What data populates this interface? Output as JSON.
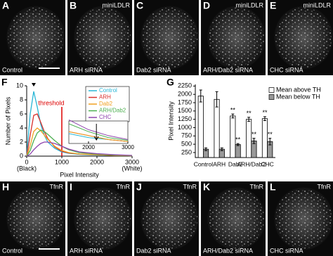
{
  "panels_top": [
    {
      "letter": "A",
      "label": "Control"
    },
    {
      "letter": "B",
      "marker": "miniLDLR",
      "label": "ARH siRNA"
    },
    {
      "letter": "C",
      "label": "Dab2 siRNA"
    },
    {
      "letter": "D",
      "marker": "miniLDLR",
      "label": "ARH/Dab2 siRNA"
    },
    {
      "letter": "E",
      "marker": "miniLDLR",
      "label": "CHC siRNA"
    }
  ],
  "panels_bottom": [
    {
      "letter": "H",
      "marker": "TfnR",
      "label": "Control"
    },
    {
      "letter": "I",
      "marker": "TfnR",
      "label": "ARH siRNA"
    },
    {
      "letter": "J",
      "marker": "TfnR",
      "label": "Dab2 siRNA"
    },
    {
      "letter": "K",
      "marker": "TfnR",
      "label": "ARH/Dab2 siRNA"
    },
    {
      "letter": "L",
      "marker": "TfnR",
      "label": "CHC siRNA"
    }
  ],
  "chart_data": [
    {
      "type": "line",
      "letter": "F",
      "y_label": "Number of Pixels",
      "x_label": "Pixel Intensity",
      "x_end_labels": [
        "(Black)",
        "(White)"
      ],
      "threshold_label": "threshold",
      "threshold_x": 1000,
      "x": [
        0,
        100,
        200,
        300,
        400,
        500,
        600,
        800,
        1000,
        1200,
        1500,
        2000,
        2500,
        3000
      ],
      "series": [
        {
          "name": "Control",
          "color": "#29b6d6",
          "values": [
            0,
            6,
            9.2,
            7,
            4.5,
            3,
            2,
            1.1,
            0.6,
            0.4,
            0.25,
            0.15,
            0.1,
            0.05
          ]
        },
        {
          "name": "ARH",
          "color": "#d9302c",
          "values": [
            0,
            3,
            5.8,
            6,
            4.8,
            3.5,
            2.5,
            1.3,
            0.7,
            0.45,
            0.3,
            0.2,
            0.1,
            0.05
          ]
        },
        {
          "name": "Dab2",
          "color": "#f0a020",
          "values": [
            0,
            1.5,
            3.5,
            4,
            3.6,
            3,
            2.4,
            1.4,
            0.8,
            0.5,
            0.3,
            0.2,
            0.1,
            0.05
          ]
        },
        {
          "name": "ARH/Dab2",
          "color": "#4caf50",
          "values": [
            0,
            0.8,
            2.2,
            3.3,
            3.7,
            3.5,
            3.1,
            2.2,
            1.4,
            0.9,
            0.5,
            0.3,
            0.15,
            0.08
          ]
        },
        {
          "name": "CHC",
          "color": "#8e44ad",
          "values": [
            0,
            0.3,
            0.9,
            1.4,
            1.8,
            2,
            2,
            1.8,
            1.4,
            1,
            0.6,
            0.35,
            0.2,
            0.1
          ]
        }
      ],
      "xlim": [
        0,
        3000
      ],
      "xticks": [
        0,
        1000,
        2000,
        3000
      ],
      "ylim": [
        0,
        10
      ],
      "yticks": [
        0,
        2,
        4,
        6,
        8,
        10
      ],
      "inset": {
        "xlim": [
          1500,
          3000
        ],
        "xticks": [
          2000,
          3000
        ],
        "ylim": [
          0,
          0.5
        ]
      }
    },
    {
      "type": "bar",
      "letter": "G",
      "y_label": "Pixel Intensity",
      "categories": [
        "Control",
        "ARH",
        "Dab2",
        "ARH/Dab2",
        "CHC"
      ],
      "series": [
        {
          "name": "Mean above TH",
          "color": "#ffffff",
          "values": [
            1950,
            1850,
            1350,
            1250,
            1270
          ],
          "errors": [
            180,
            230,
            60,
            60,
            60
          ],
          "marks": [
            null,
            null,
            "**",
            "**",
            "**"
          ]
        },
        {
          "name": "Mean below TH",
          "color": "#999999",
          "values": [
            350,
            350,
            490,
            600,
            580
          ],
          "errors": [
            40,
            40,
            30,
            80,
            100
          ],
          "marks": [
            null,
            null,
            "**",
            "**",
            "**"
          ]
        }
      ],
      "ylim": [
        100,
        2300
      ],
      "yticks": [
        250,
        500,
        750,
        1000,
        1250,
        1500,
        1750,
        2000,
        2250
      ]
    }
  ]
}
